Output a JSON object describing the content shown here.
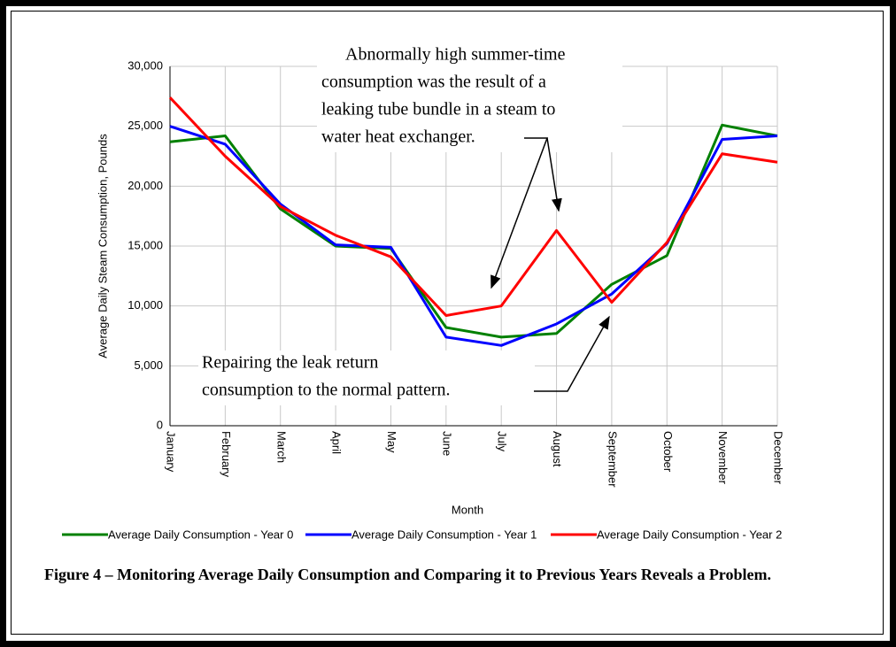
{
  "chart_data": {
    "type": "line",
    "x_label": "Month",
    "y_label": "Average Daily Steam Consumption, Pounds",
    "categories": [
      "January",
      "February",
      "March",
      "April",
      "May",
      "June",
      "July",
      "August",
      "September",
      "October",
      "November",
      "December"
    ],
    "series": [
      {
        "name": "Average Daily Consumption - Year 0",
        "color": "#008000",
        "values": [
          23700,
          24200,
          18100,
          15000,
          14800,
          8200,
          7400,
          7700,
          11800,
          14200,
          25100,
          24200
        ]
      },
      {
        "name": "Average Daily Consumption - Year 1",
        "color": "#0000ff",
        "values": [
          25000,
          23500,
          18500,
          15100,
          14900,
          7400,
          6700,
          8500,
          11000,
          15200,
          23900,
          24200
        ]
      },
      {
        "name": "Average Daily Consumption - Year 2",
        "color": "#ff0000",
        "values": [
          27400,
          22500,
          18300,
          15900,
          14100,
          9200,
          10000,
          16300,
          10300,
          15300,
          22700,
          22000
        ]
      }
    ],
    "ylim": [
      0,
      30000
    ],
    "yticks": [
      0,
      {
        "value": 5000,
        "label": "5,000"
      },
      {
        "value": 10000,
        "label": "10,000"
      },
      {
        "value": 15000,
        "label": "15,000"
      },
      {
        "value": 20000,
        "label": "20,000"
      },
      {
        "value": 25000,
        "label": "25,000"
      },
      {
        "value": 30000,
        "label": "30,000"
      }
    ],
    "grid": true,
    "legend": "bottom",
    "annotations": [
      {
        "lines": [
          "Abnormally high summer-time",
          "consumption was the result of a",
          "leaking tube bundle in a steam to",
          "water heat exchanger."
        ]
      },
      {
        "lines": [
          "Repairing the leak return",
          "consumption to the normal pattern."
        ]
      }
    ],
    "caption": "Figure 4 – Monitoring Average Daily Consumption and Comparing it to Previous Years Reveals a Problem."
  }
}
